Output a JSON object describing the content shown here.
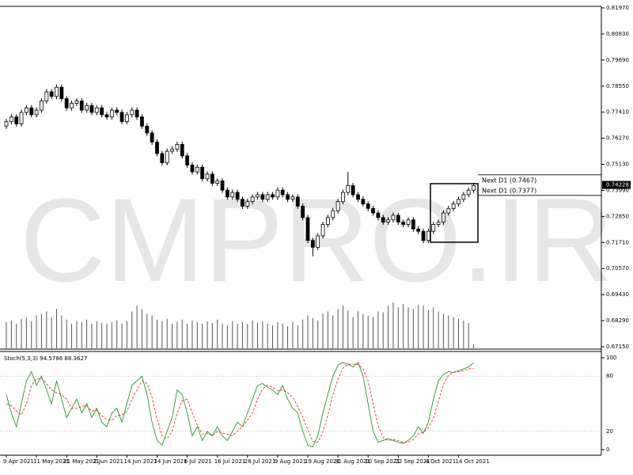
{
  "chart_data": [
    {
      "type": "candlestick",
      "watermark": "CMPRO.IR",
      "ylim": [
        0.6715,
        0.8197
      ],
      "yticks": [
        {
          "value": 0.8197,
          "label": "0.81970"
        },
        {
          "value": 0.8083,
          "label": "0.80830"
        },
        {
          "value": 0.7969,
          "label": "0.79690"
        },
        {
          "value": 0.7855,
          "label": "0.78550"
        },
        {
          "value": 0.7741,
          "label": "0.77410"
        },
        {
          "value": 0.7627,
          "label": "0.76270"
        },
        {
          "value": 0.7513,
          "label": "0.75130"
        },
        {
          "value": 0.7399,
          "label": "0.73990"
        },
        {
          "value": 0.7285,
          "label": "0.72850"
        },
        {
          "value": 0.7171,
          "label": "0.71710"
        },
        {
          "value": 0.7057,
          "label": "0.70570"
        },
        {
          "value": 0.6943,
          "label": "0.69430"
        },
        {
          "value": 0.6829,
          "label": "0.68290"
        },
        {
          "value": 0.6715,
          "label": "0.67150"
        }
      ],
      "current_price": {
        "value": 0.74228,
        "label": "0.74228"
      },
      "annotations": [
        {
          "value": 0.7467,
          "label": "Next D1 (0.7467)"
        },
        {
          "value": 0.7377,
          "label": "Next D1 (0.7377)"
        }
      ],
      "categories": [
        "9 Apr 2021",
        null,
        null,
        null,
        null,
        null,
        "11 May 2021",
        null,
        null,
        null,
        null,
        null,
        "21 May 2021",
        null,
        null,
        null,
        null,
        null,
        "2 Jun 2021",
        null,
        null,
        null,
        null,
        null,
        "14 Jun 2021",
        null,
        null,
        null,
        null,
        null,
        "24 Jun 2021",
        null,
        null,
        null,
        null,
        null,
        "6 Jul 2021",
        null,
        null,
        null,
        null,
        null,
        "16 Jul 2021",
        null,
        null,
        null,
        null,
        null,
        "28 Jul 2021",
        null,
        null,
        null,
        null,
        null,
        "9 Aug 2021",
        null,
        null,
        null,
        null,
        null,
        "19 Aug 2021",
        null,
        null,
        null,
        null,
        null,
        "31 Aug 2021",
        null,
        null,
        null,
        null,
        null,
        "10 Sep 2021",
        null,
        null,
        null,
        null,
        null,
        "22 Sep 2021",
        null,
        null,
        null,
        null,
        null,
        "4 Oct 2021",
        null,
        null,
        null,
        null,
        null,
        "14 Oct 2021",
        null,
        null,
        null
      ],
      "open": [
        0.768,
        0.77,
        0.772,
        0.769,
        0.774,
        0.776,
        0.773,
        0.775,
        0.779,
        0.783,
        0.781,
        0.785,
        0.78,
        0.776,
        0.778,
        0.779,
        0.775,
        0.777,
        0.774,
        0.776,
        0.773,
        0.772,
        0.775,
        0.774,
        0.77,
        0.773,
        0.775,
        0.772,
        0.768,
        0.765,
        0.761,
        0.756,
        0.752,
        0.757,
        0.758,
        0.76,
        0.755,
        0.751,
        0.748,
        0.75,
        0.745,
        0.747,
        0.743,
        0.744,
        0.74,
        0.737,
        0.739,
        0.736,
        0.733,
        0.735,
        0.737,
        0.738,
        0.736,
        0.738,
        0.737,
        0.74,
        0.738,
        0.736,
        0.737,
        0.733,
        0.728,
        0.718,
        0.715,
        0.72,
        0.725,
        0.728,
        0.731,
        0.735,
        0.739,
        0.742,
        0.738,
        0.736,
        0.734,
        0.732,
        0.73,
        0.728,
        0.726,
        0.727,
        0.729,
        0.726,
        0.725,
        0.727,
        0.723,
        0.722,
        0.718,
        0.722,
        0.725,
        0.726,
        0.73,
        0.732,
        0.734,
        0.736,
        0.738,
        0.74
      ],
      "high": [
        0.7712,
        0.7732,
        0.7732,
        0.7752,
        0.7772,
        0.7772,
        0.7762,
        0.7802,
        0.7842,
        0.7842,
        0.7862,
        0.7862,
        0.7812,
        0.7792,
        0.7802,
        0.7802,
        0.7782,
        0.7782,
        0.7772,
        0.7772,
        0.7742,
        0.7762,
        0.7762,
        0.7752,
        0.7742,
        0.7762,
        0.7762,
        0.7732,
        0.7692,
        0.7662,
        0.7622,
        0.7572,
        0.7582,
        0.7592,
        0.7612,
        0.7612,
        0.7562,
        0.7522,
        0.7512,
        0.7512,
        0.7482,
        0.7482,
        0.7452,
        0.7452,
        0.7412,
        0.7402,
        0.7402,
        0.7372,
        0.7362,
        0.7382,
        0.7392,
        0.7392,
        0.7392,
        0.7392,
        0.7412,
        0.7412,
        0.7392,
        0.7382,
        0.7382,
        0.7342,
        0.7292,
        0.7192,
        0.7212,
        0.7262,
        0.7292,
        0.7322,
        0.7362,
        0.7402,
        0.748,
        0.7432,
        0.7392,
        0.7372,
        0.7352,
        0.7332,
        0.7312,
        0.7292,
        0.7282,
        0.7302,
        0.7302,
        0.7272,
        0.7282,
        0.7282,
        0.7242,
        0.7232,
        0.7232,
        0.7262,
        0.7272,
        0.7312,
        0.7332,
        0.7352,
        0.7372,
        0.7392,
        0.7412,
        0.7432
      ],
      "low": [
        0.7668,
        0.7688,
        0.7678,
        0.7678,
        0.7728,
        0.7718,
        0.7718,
        0.7738,
        0.7778,
        0.7798,
        0.7798,
        0.7788,
        0.7748,
        0.7748,
        0.7768,
        0.7738,
        0.7738,
        0.7728,
        0.7728,
        0.7718,
        0.7708,
        0.7708,
        0.7728,
        0.7688,
        0.7688,
        0.7718,
        0.7708,
        0.7668,
        0.7638,
        0.7598,
        0.7548,
        0.7508,
        0.7508,
        0.7558,
        0.7568,
        0.7538,
        0.7498,
        0.7468,
        0.7468,
        0.7438,
        0.7438,
        0.7418,
        0.7418,
        0.7388,
        0.7358,
        0.7358,
        0.7348,
        0.7318,
        0.7318,
        0.7338,
        0.7358,
        0.7348,
        0.7348,
        0.7358,
        0.7358,
        0.7368,
        0.7348,
        0.7348,
        0.7318,
        0.7268,
        0.7168,
        0.711,
        0.7138,
        0.7188,
        0.7238,
        0.7268,
        0.7298,
        0.7338,
        0.7378,
        0.7368,
        0.7348,
        0.7328,
        0.7308,
        0.7288,
        0.7268,
        0.7248,
        0.7248,
        0.7258,
        0.7248,
        0.7238,
        0.7238,
        0.7218,
        0.7208,
        0.7168,
        0.7168,
        0.7208,
        0.7238,
        0.7248,
        0.7288,
        0.7308,
        0.7328,
        0.7348,
        0.7368,
        0.7388
      ],
      "close": [
        0.77,
        0.772,
        0.769,
        0.774,
        0.776,
        0.773,
        0.775,
        0.779,
        0.783,
        0.781,
        0.785,
        0.78,
        0.776,
        0.778,
        0.779,
        0.775,
        0.777,
        0.774,
        0.776,
        0.773,
        0.772,
        0.775,
        0.774,
        0.77,
        0.773,
        0.775,
        0.772,
        0.768,
        0.765,
        0.761,
        0.756,
        0.752,
        0.757,
        0.758,
        0.76,
        0.755,
        0.751,
        0.748,
        0.75,
        0.745,
        0.747,
        0.743,
        0.744,
        0.74,
        0.737,
        0.739,
        0.736,
        0.733,
        0.735,
        0.737,
        0.738,
        0.736,
        0.738,
        0.737,
        0.74,
        0.738,
        0.736,
        0.737,
        0.733,
        0.728,
        0.718,
        0.715,
        0.72,
        0.725,
        0.728,
        0.731,
        0.735,
        0.739,
        0.742,
        0.738,
        0.736,
        0.734,
        0.732,
        0.73,
        0.728,
        0.726,
        0.727,
        0.729,
        0.726,
        0.725,
        0.727,
        0.723,
        0.722,
        0.718,
        0.722,
        0.725,
        0.726,
        0.73,
        0.732,
        0.734,
        0.736,
        0.738,
        0.74,
        0.742
      ]
    },
    {
      "type": "bar",
      "color": "#555555",
      "values": [
        32,
        34,
        30,
        36,
        38,
        33,
        40,
        42,
        45,
        38,
        48,
        40,
        35,
        30,
        33,
        32,
        35,
        30,
        33,
        31,
        30,
        32,
        34,
        30,
        33,
        45,
        52,
        48,
        42,
        40,
        35,
        33,
        36,
        30,
        32,
        35,
        30,
        34,
        32,
        30,
        33,
        31,
        35,
        30,
        28,
        33,
        30,
        32,
        30,
        34,
        31,
        33,
        30,
        28,
        32,
        30,
        27,
        32,
        28,
        35,
        40,
        37,
        34,
        42,
        45,
        40,
        48,
        52,
        46,
        38,
        45,
        42,
        40,
        38,
        45,
        44,
        52,
        56,
        50,
        54,
        50,
        48,
        53,
        52,
        47,
        50,
        45,
        42,
        40,
        38,
        36,
        34,
        31,
        5
      ]
    },
    {
      "type": "line",
      "title": "Stoch(5,3,3) 94.5786 88.3627",
      "ylim": [
        0,
        100
      ],
      "yticks": [
        0,
        20,
        80,
        100
      ],
      "grid": true,
      "series": [
        {
          "color": "#1f9a1f",
          "values": [
            60,
            40,
            25,
            50,
            75,
            85,
            70,
            80,
            65,
            50,
            75,
            55,
            35,
            45,
            55,
            40,
            50,
            35,
            45,
            30,
            25,
            40,
            45,
            30,
            50,
            70,
            75,
            80,
            60,
            30,
            10,
            5,
            20,
            35,
            65,
            60,
            40,
            15,
            25,
            10,
            20,
            15,
            25,
            15,
            10,
            20,
            30,
            25,
            40,
            55,
            70,
            72,
            68,
            65,
            60,
            70,
            55,
            45,
            40,
            20,
            5,
            3,
            15,
            40,
            60,
            80,
            92,
            95,
            93,
            90,
            95,
            80,
            50,
            20,
            8,
            10,
            12,
            10,
            8,
            7,
            10,
            15,
            25,
            18,
            30,
            55,
            75,
            82,
            85,
            84,
            86,
            88,
            90,
            94.5786
          ]
        },
        {
          "color": "#e23030",
          "values": [
            50,
            48,
            42,
            38,
            50,
            70,
            77,
            78,
            72,
            65,
            62,
            60,
            55,
            45,
            45,
            47,
            48,
            42,
            43,
            37,
            33,
            32,
            37,
            38,
            42,
            55,
            65,
            75,
            72,
            57,
            33,
            15,
            12,
            20,
            40,
            53,
            55,
            40,
            27,
            17,
            18,
            15,
            20,
            18,
            17,
            15,
            20,
            25,
            32,
            40,
            55,
            66,
            70,
            68,
            64,
            65,
            62,
            57,
            47,
            35,
            22,
            9,
            8,
            19,
            38,
            60,
            77,
            89,
            93,
            93,
            93,
            88,
            75,
            50,
            26,
            13,
            10,
            11,
            10,
            8,
            8,
            11,
            17,
            19,
            24,
            34,
            53,
            71,
            81,
            84,
            85,
            86,
            88,
            88.3627
          ]
        }
      ]
    }
  ]
}
